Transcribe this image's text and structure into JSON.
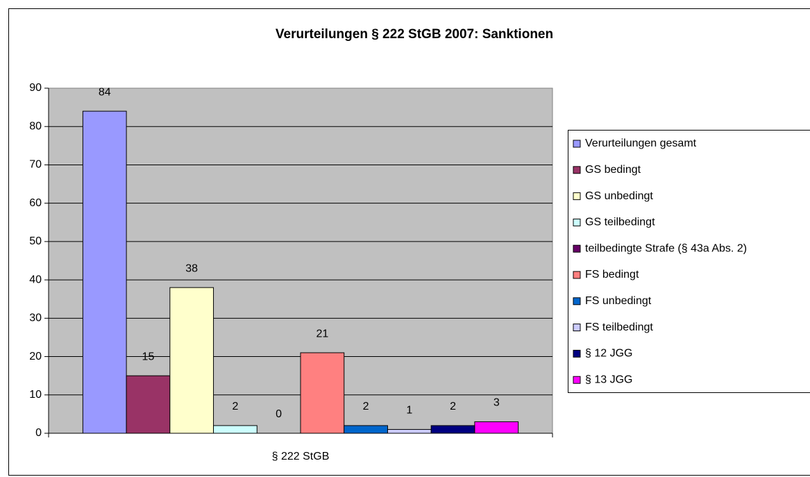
{
  "chart_data": {
    "type": "bar",
    "title": "Verurteilungen § 222 StGB 2007: Sanktionen",
    "categories": [
      "§ 222 StGB"
    ],
    "series": [
      {
        "name": "Verurteilungen gesamt",
        "color": "#9999ff",
        "values": [
          84
        ]
      },
      {
        "name": "GS bedingt",
        "color": "#993366",
        "values": [
          15
        ]
      },
      {
        "name": "GS unbedingt",
        "color": "#ffffcc",
        "values": [
          38
        ]
      },
      {
        "name": "GS teilbedingt",
        "color": "#ccffff",
        "values": [
          2
        ]
      },
      {
        "name": "teilbedingte Strafe (§ 43a Abs. 2)",
        "color": "#660066",
        "values": [
          0
        ]
      },
      {
        "name": "FS bedingt",
        "color": "#ff8080",
        "values": [
          21
        ]
      },
      {
        "name": "FS unbedingt",
        "color": "#0066cc",
        "values": [
          2
        ]
      },
      {
        "name": "FS teilbedingt",
        "color": "#ccccff",
        "values": [
          1
        ]
      },
      {
        "name": "§ 12 JGG",
        "color": "#000080",
        "values": [
          2
        ]
      },
      {
        "name": "§ 13 JGG",
        "color": "#ff00ff",
        "values": [
          3
        ]
      }
    ],
    "ylim": [
      0,
      90
    ],
    "yticks": [
      0,
      10,
      20,
      30,
      40,
      50,
      60,
      70,
      80,
      90
    ],
    "grid": true,
    "legend": "right"
  }
}
